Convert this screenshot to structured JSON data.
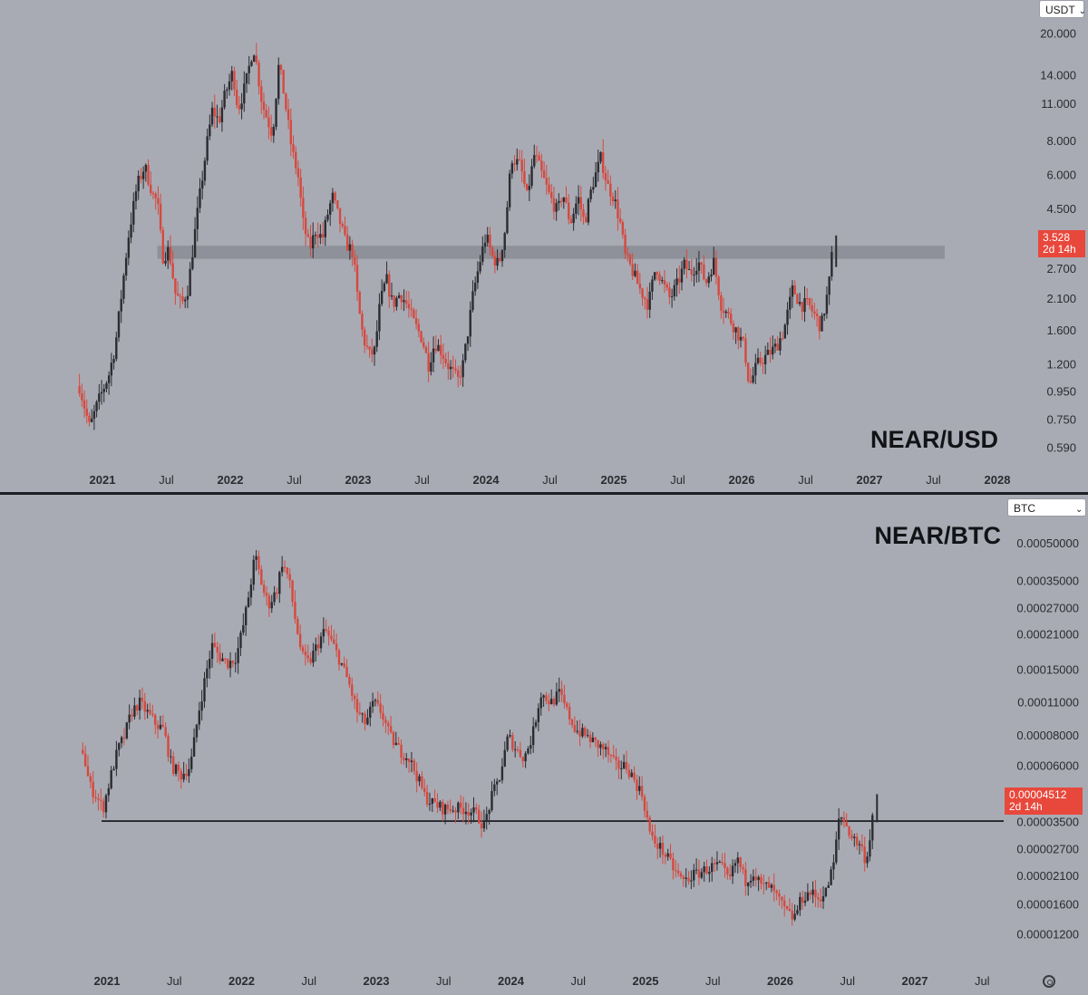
{
  "chart_data": [
    {
      "type": "candlestick",
      "title": "NEAR/USD",
      "quote_currency": "USDT",
      "y_scale": "log",
      "ylim": [
        0.5,
        21
      ],
      "y_ticks": [
        "20.000",
        "14.000",
        "11.000",
        "8.000",
        "6.000",
        "4.500",
        "2.700",
        "2.100",
        "1.600",
        "1.200",
        "0.950",
        "0.750",
        "0.590"
      ],
      "x_ticks": [
        {
          "label": "2021",
          "bold": true
        },
        {
          "label": "Jul",
          "bold": false
        },
        {
          "label": "2022",
          "bold": true
        },
        {
          "label": "Jul",
          "bold": false
        },
        {
          "label": "2023",
          "bold": true
        },
        {
          "label": "Jul",
          "bold": false
        },
        {
          "label": "2024",
          "bold": true
        },
        {
          "label": "Jul",
          "bold": false
        },
        {
          "label": "2025",
          "bold": true
        },
        {
          "label": "Jul",
          "bold": false
        },
        {
          "label": "2026",
          "bold": true
        },
        {
          "label": "Jul",
          "bold": false
        },
        {
          "label": "2027",
          "bold": true
        },
        {
          "label": "Jul",
          "bold": false
        },
        {
          "label": "2028",
          "bold": true
        }
      ],
      "last_price": "3.528",
      "countdown": "2d 14h",
      "zone": [
        2.95,
        3.3
      ],
      "series_close": [
        [
          2020.82,
          1.0
        ],
        [
          2020.9,
          0.7
        ],
        [
          2020.96,
          0.86
        ],
        [
          2021.05,
          1.1
        ],
        [
          2021.1,
          1.4
        ],
        [
          2021.15,
          2.2
        ],
        [
          2021.2,
          3.5
        ],
        [
          2021.27,
          5.5
        ],
        [
          2021.33,
          6.5
        ],
        [
          2021.4,
          5.0
        ],
        [
          2021.43,
          4.8
        ],
        [
          2021.47,
          3.0
        ],
        [
          2021.52,
          3.2
        ],
        [
          2021.57,
          2.2
        ],
        [
          2021.62,
          2.0
        ],
        [
          2021.67,
          2.3
        ],
        [
          2021.72,
          3.6
        ],
        [
          2021.76,
          5.0
        ],
        [
          2021.82,
          8.0
        ],
        [
          2021.86,
          10.5
        ],
        [
          2021.91,
          9.5
        ],
        [
          2021.96,
          12.0
        ],
        [
          2022.02,
          14.5
        ],
        [
          2022.06,
          10.5
        ],
        [
          2022.12,
          13.0
        ],
        [
          2022.18,
          18.0
        ],
        [
          2022.2,
          16.0
        ],
        [
          2022.25,
          11.0
        ],
        [
          2022.28,
          10.0
        ],
        [
          2022.33,
          8.5
        ],
        [
          2022.38,
          15.5
        ],
        [
          2022.42,
          12.0
        ],
        [
          2022.48,
          7.5
        ],
        [
          2022.53,
          6.0
        ],
        [
          2022.57,
          4.0
        ],
        [
          2022.62,
          3.2
        ],
        [
          2022.67,
          3.8
        ],
        [
          2022.72,
          3.5
        ],
        [
          2022.77,
          4.5
        ],
        [
          2022.8,
          5.0
        ],
        [
          2022.86,
          4.0
        ],
        [
          2022.9,
          3.4
        ],
        [
          2022.96,
          3.1
        ],
        [
          2023.0,
          2.0
        ],
        [
          2023.04,
          1.5
        ],
        [
          2023.09,
          1.3
        ],
        [
          2023.13,
          1.35
        ],
        [
          2023.17,
          2.0
        ],
        [
          2023.22,
          2.5
        ],
        [
          2023.27,
          2.0
        ],
        [
          2023.33,
          2.2
        ],
        [
          2023.38,
          2.0
        ],
        [
          2023.44,
          1.7
        ],
        [
          2023.5,
          1.5
        ],
        [
          2023.55,
          1.2
        ],
        [
          2023.6,
          1.45
        ],
        [
          2023.65,
          1.35
        ],
        [
          2023.7,
          1.2
        ],
        [
          2023.78,
          1.05
        ],
        [
          2023.82,
          1.2
        ],
        [
          2023.86,
          1.6
        ],
        [
          2023.9,
          2.2
        ],
        [
          2023.96,
          3.0
        ],
        [
          2024.0,
          3.6
        ],
        [
          2024.05,
          3.0
        ],
        [
          2024.1,
          2.8
        ],
        [
          2024.15,
          3.8
        ],
        [
          2024.2,
          7.0
        ],
        [
          2024.27,
          6.5
        ],
        [
          2024.32,
          5.0
        ],
        [
          2024.38,
          7.2
        ],
        [
          2024.44,
          6.0
        ],
        [
          2024.5,
          5.0
        ],
        [
          2024.56,
          4.4
        ],
        [
          2024.6,
          5.2
        ],
        [
          2024.66,
          4.0
        ],
        [
          2024.72,
          5.0
        ],
        [
          2024.77,
          4.0
        ],
        [
          2024.83,
          5.5
        ],
        [
          2024.9,
          7.0
        ],
        [
          2024.95,
          5.5
        ],
        [
          2025.0,
          5.0
        ],
        [
          2025.05,
          4.0
        ],
        [
          2025.09,
          3.0
        ],
        [
          2025.14,
          2.7
        ],
        [
          2025.2,
          2.3
        ],
        [
          2025.27,
          2.0
        ],
        [
          2025.33,
          2.8
        ],
        [
          2025.38,
          2.4
        ],
        [
          2025.44,
          2.1
        ],
        [
          2025.5,
          2.4
        ],
        [
          2025.55,
          2.8
        ],
        [
          2025.6,
          2.6
        ],
        [
          2025.66,
          2.9
        ],
        [
          2025.72,
          2.4
        ],
        [
          2025.78,
          2.9
        ],
        [
          2025.84,
          2.0
        ],
        [
          2025.9,
          1.8
        ],
        [
          2025.96,
          1.6
        ],
        [
          2026.02,
          1.4
        ],
        [
          2026.06,
          1.0
        ],
        [
          2026.12,
          1.2
        ],
        [
          2026.2,
          1.3
        ],
        [
          2026.27,
          1.4
        ],
        [
          2026.33,
          1.6
        ],
        [
          2026.4,
          2.3
        ],
        [
          2026.46,
          2.0
        ],
        [
          2026.52,
          2.0
        ],
        [
          2026.58,
          1.8
        ],
        [
          2026.62,
          1.65
        ],
        [
          2026.68,
          2.3
        ],
        [
          2026.72,
          3.53
        ]
      ]
    },
    {
      "type": "candlestick",
      "title": "NEAR/BTC",
      "quote_currency": "BTC",
      "y_scale": "log",
      "ylim": [
        1.05e-05,
        0.00056
      ],
      "y_ticks": [
        "0.00050000",
        "0.00035000",
        "0.00027000",
        "0.00021000",
        "0.00015000",
        "0.00011000",
        "0.00008000",
        "0.00006000",
        "0.00003500",
        "0.00002700",
        "0.00002100",
        "0.00001600",
        "0.00001200"
      ],
      "x_ticks": [
        {
          "label": "2021",
          "bold": true
        },
        {
          "label": "Jul",
          "bold": false
        },
        {
          "label": "2022",
          "bold": true
        },
        {
          "label": "Jul",
          "bold": false
        },
        {
          "label": "2023",
          "bold": true
        },
        {
          "label": "Jul",
          "bold": false
        },
        {
          "label": "2024",
          "bold": true
        },
        {
          "label": "Jul",
          "bold": false
        },
        {
          "label": "2025",
          "bold": true
        },
        {
          "label": "Jul",
          "bold": false
        },
        {
          "label": "2026",
          "bold": true
        },
        {
          "label": "Jul",
          "bold": false
        },
        {
          "label": "2027",
          "bold": true
        },
        {
          "label": "Jul",
          "bold": false
        }
      ],
      "last_price": "0.00004512",
      "countdown": "2d 14h",
      "support_line": {
        "value": 3.55e-05,
        "x_start": 2020.96
      },
      "series_close": [
        [
          2020.82,
          7e-05
        ],
        [
          2020.87,
          5e-05
        ],
        [
          2020.92,
          4.5e-05
        ],
        [
          2020.97,
          4e-05
        ],
        [
          2021.03,
          5.5e-05
        ],
        [
          2021.08,
          7e-05
        ],
        [
          2021.13,
          8e-05
        ],
        [
          2021.18,
          0.0001
        ],
        [
          2021.24,
          0.00011
        ],
        [
          2021.3,
          0.0001
        ],
        [
          2021.36,
          9e-05
        ],
        [
          2021.42,
          8.5e-05
        ],
        [
          2021.48,
          6e-05
        ],
        [
          2021.55,
          5.5e-05
        ],
        [
          2021.62,
          6e-05
        ],
        [
          2021.68,
          0.0001
        ],
        [
          2021.73,
          0.00014
        ],
        [
          2021.78,
          0.00019
        ],
        [
          2021.84,
          0.00017
        ],
        [
          2021.9,
          0.00016
        ],
        [
          2021.96,
          0.00017
        ],
        [
          2022.02,
          0.00024
        ],
        [
          2022.07,
          0.00035
        ],
        [
          2022.1,
          0.00045
        ],
        [
          2022.16,
          0.00032
        ],
        [
          2022.2,
          0.00028
        ],
        [
          2022.26,
          0.00032
        ],
        [
          2022.3,
          0.00042
        ],
        [
          2022.35,
          0.00036
        ],
        [
          2022.4,
          0.00024
        ],
        [
          2022.45,
          0.00017
        ],
        [
          2022.5,
          0.00016
        ],
        [
          2022.56,
          0.00019
        ],
        [
          2022.62,
          0.00022
        ],
        [
          2022.68,
          0.00019
        ],
        [
          2022.74,
          0.00016
        ],
        [
          2022.8,
          0.00013
        ],
        [
          2022.86,
          0.0001
        ],
        [
          2022.92,
          9e-05
        ],
        [
          2022.98,
          0.00011
        ],
        [
          2023.04,
          0.0001
        ],
        [
          2023.1,
          8e-05
        ],
        [
          2023.17,
          7e-05
        ],
        [
          2023.24,
          6.5e-05
        ],
        [
          2023.3,
          5.5e-05
        ],
        [
          2023.36,
          4.5e-05
        ],
        [
          2023.42,
          4.2e-05
        ],
        [
          2023.5,
          4e-05
        ],
        [
          2023.58,
          4e-05
        ],
        [
          2023.66,
          4e-05
        ],
        [
          2023.74,
          3.8e-05
        ],
        [
          2023.8,
          3.4e-05
        ],
        [
          2023.86,
          4.5e-05
        ],
        [
          2023.92,
          5.5e-05
        ],
        [
          2023.98,
          8e-05
        ],
        [
          2024.04,
          7e-05
        ],
        [
          2024.1,
          6.5e-05
        ],
        [
          2024.16,
          8e-05
        ],
        [
          2024.22,
          0.00012
        ],
        [
          2024.3,
          0.00011
        ],
        [
          2024.36,
          0.00012
        ],
        [
          2024.42,
          0.0001
        ],
        [
          2024.48,
          8.5e-05
        ],
        [
          2024.56,
          8e-05
        ],
        [
          2024.62,
          7.5e-05
        ],
        [
          2024.7,
          7e-05
        ],
        [
          2024.78,
          6e-05
        ],
        [
          2024.86,
          6e-05
        ],
        [
          2024.92,
          5.2e-05
        ],
        [
          2024.98,
          4.5e-05
        ],
        [
          2025.04,
          3e-05
        ],
        [
          2025.1,
          2.8e-05
        ],
        [
          2025.16,
          2.5e-05
        ],
        [
          2025.22,
          2.2e-05
        ],
        [
          2025.28,
          2e-05
        ],
        [
          2025.34,
          2.1e-05
        ],
        [
          2025.42,
          2.2e-05
        ],
        [
          2025.5,
          2.3e-05
        ],
        [
          2025.56,
          2.3e-05
        ],
        [
          2025.62,
          2e-05
        ],
        [
          2025.68,
          2.5e-05
        ],
        [
          2025.74,
          2e-05
        ],
        [
          2025.8,
          2.2e-05
        ],
        [
          2025.86,
          1.9e-05
        ],
        [
          2025.92,
          1.9e-05
        ],
        [
          2025.98,
          1.7e-05
        ],
        [
          2026.04,
          1.5e-05
        ],
        [
          2026.1,
          1.4e-05
        ],
        [
          2026.16,
          1.7e-05
        ],
        [
          2026.22,
          1.8e-05
        ],
        [
          2026.28,
          1.7e-05
        ],
        [
          2026.34,
          1.8e-05
        ],
        [
          2026.4,
          2.4e-05
        ],
        [
          2026.44,
          3.8e-05
        ],
        [
          2026.48,
          3.5e-05
        ],
        [
          2026.54,
          3e-05
        ],
        [
          2026.6,
          2.8e-05
        ],
        [
          2026.64,
          2.4e-05
        ],
        [
          2026.68,
          3.5e-05
        ],
        [
          2026.7,
          4.5e-05
        ]
      ]
    }
  ]
}
